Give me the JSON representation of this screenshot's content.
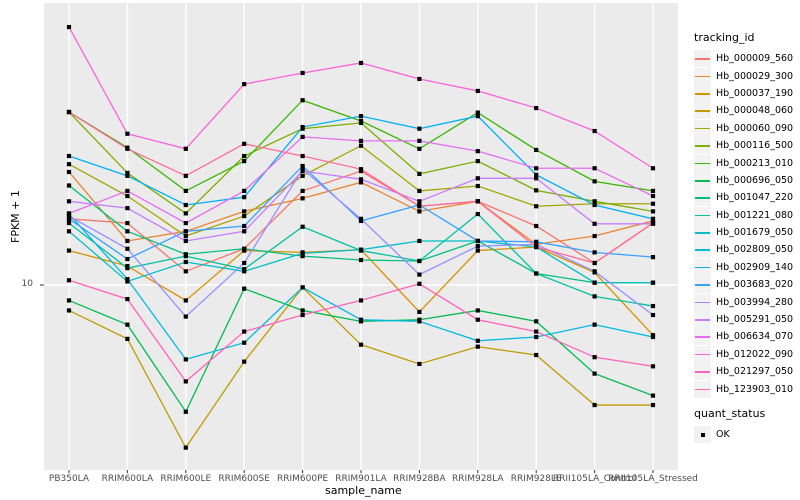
{
  "y_axis": {
    "title": "FPKM + 1",
    "tick_label": "10"
  },
  "x_axis": {
    "title": "sample_name"
  },
  "legend": {
    "tracking_title": "tracking_id",
    "quant_title": "quant_status",
    "quant_value": "OK"
  },
  "style": {
    "panel_bg": "#EBEBEB",
    "grid_color": "#FFFFFF",
    "tick_color": "#333333",
    "point_color": "#000000",
    "key_bg": "#F2F2F2"
  },
  "chart_data": {
    "type": "line",
    "title": "",
    "xlabel": "sample_name",
    "ylabel": "FPKM + 1",
    "y_scale": "log10",
    "y_ticks": [
      10
    ],
    "ylim": [
      2.1,
      100
    ],
    "grid": true,
    "legend_position": "right",
    "point_shape": "filled-square",
    "quant_status": "OK",
    "categories": [
      "PB350LA",
      "RRIM600LA",
      "RRIM600LE",
      "RRIM600SE",
      "RRIM600PE",
      "RRIM901LA",
      "RRIM928BA",
      "RRIM928LA",
      "RRIM928LE",
      "RRII105LA_Control",
      "RRII105LA_Stressed"
    ],
    "series": [
      {
        "name": "Hb_000009_560",
        "color": "#F8766D",
        "values": [
          17.3,
          16.7,
          11.2,
          13.5,
          21.8,
          25.7,
          19.2,
          20.0,
          16.3,
          12.0,
          16.7
        ]
      },
      {
        "name": "Hb_000029_300",
        "color": "#EA8331",
        "values": [
          25.5,
          14.4,
          15.6,
          18.4,
          20.5,
          23.4,
          18.4,
          20.0,
          14.0,
          15.0,
          17.0
        ]
      },
      {
        "name": "Hb_000037_190",
        "color": "#D89000",
        "values": [
          13.3,
          11.7,
          8.8,
          13.3,
          13.1,
          13.4,
          8.0,
          13.3,
          13.7,
          11.1,
          6.6
        ]
      },
      {
        "name": "Hb_000048_060",
        "color": "#C09B00",
        "values": [
          8.1,
          6.4,
          2.6,
          5.3,
          9.8,
          6.1,
          5.2,
          6.0,
          5.6,
          3.7,
          3.7
        ]
      },
      {
        "name": "Hb_000060_090",
        "color": "#A3A500",
        "values": [
          27.2,
          20.9,
          15.0,
          17.7,
          24.7,
          31.7,
          21.8,
          22.7,
          19.2,
          19.6,
          19.6
        ]
      },
      {
        "name": "Hb_000116_500",
        "color": "#7CAE00",
        "values": [
          41.9,
          25.3,
          18.1,
          29.1,
          36.5,
          38.3,
          25.1,
          27.9,
          21.9,
          20.0,
          18.4
        ]
      },
      {
        "name": "Hb_000213_010",
        "color": "#39B600",
        "values": [
          41.9,
          31.2,
          21.8,
          27.9,
          46.2,
          38.9,
          30.9,
          41.7,
          30.6,
          23.6,
          21.8
        ]
      },
      {
        "name": "Hb_000696_050",
        "color": "#00BB4E",
        "values": [
          8.8,
          7.2,
          3.5,
          9.7,
          8.1,
          7.4,
          7.5,
          8.1,
          7.4,
          4.8,
          4.0
        ]
      },
      {
        "name": "Hb_001047_220",
        "color": "#00BF7D",
        "values": [
          22.8,
          15.6,
          12.9,
          13.5,
          12.7,
          12.3,
          12.2,
          14.4,
          11.0,
          10.2,
          10.2
        ]
      },
      {
        "name": "Hb_001221_080",
        "color": "#00C1A3",
        "values": [
          16.7,
          11.5,
          12.7,
          11.4,
          16.2,
          13.3,
          12.2,
          18.0,
          11.0,
          9.1,
          8.4
        ]
      },
      {
        "name": "Hb_001679_050",
        "color": "#00BFC4",
        "values": [
          15.6,
          10.3,
          12.1,
          11.2,
          13.0,
          13.4,
          14.4,
          14.4,
          13.7,
          10.2,
          10.2
        ]
      },
      {
        "name": "Hb_002809_050",
        "color": "#00BAE0",
        "values": [
          18.0,
          10.5,
          5.4,
          6.2,
          9.8,
          7.5,
          7.4,
          6.3,
          6.5,
          7.2,
          6.5
        ]
      },
      {
        "name": "Hb_002909_140",
        "color": "#00B0F6",
        "values": [
          29.1,
          24.7,
          19.4,
          20.7,
          37.0,
          40.5,
          36.5,
          40.5,
          24.9,
          19.4,
          17.3
        ]
      },
      {
        "name": "Hb_003683_020",
        "color": "#35A2FF",
        "values": [
          17.3,
          12.4,
          15.6,
          16.3,
          26.8,
          17.0,
          19.4,
          14.4,
          14.3,
          13.1,
          12.6
        ]
      },
      {
        "name": "Hb_003994_280",
        "color": "#9590FF",
        "values": [
          17.7,
          13.5,
          7.7,
          12.0,
          26.1,
          17.3,
          10.9,
          13.8,
          14.0,
          11.2,
          7.8
        ]
      },
      {
        "name": "Hb_005291_050",
        "color": "#C77CFF",
        "values": [
          20.0,
          18.9,
          14.4,
          15.6,
          25.7,
          24.0,
          20.0,
          24.2,
          24.2,
          16.6,
          16.6
        ]
      },
      {
        "name": "Hb_006634_070",
        "color": "#E76BF3",
        "values": [
          18.1,
          21.8,
          16.7,
          21.8,
          34.1,
          33.0,
          33.0,
          30.3,
          26.3,
          26.3,
          20.9
        ]
      },
      {
        "name": "Hb_012022_090",
        "color": "#FA62DB",
        "values": [
          84.7,
          35.0,
          30.9,
          52.8,
          57.9,
          62.9,
          55.1,
          49.9,
          43.3,
          35.8,
          26.3
        ]
      },
      {
        "name": "Hb_021297_050",
        "color": "#FF62BC",
        "values": [
          10.4,
          8.9,
          4.5,
          6.8,
          7.8,
          8.8,
          10.1,
          7.5,
          6.8,
          5.5,
          5.1
        ]
      },
      {
        "name": "Hb_123903_010",
        "color": "#FF6A98",
        "values": [
          41.9,
          30.9,
          24.7,
          32.2,
          29.1,
          26.1,
          19.2,
          20.0,
          13.7,
          12.0,
          16.7
        ]
      }
    ]
  }
}
